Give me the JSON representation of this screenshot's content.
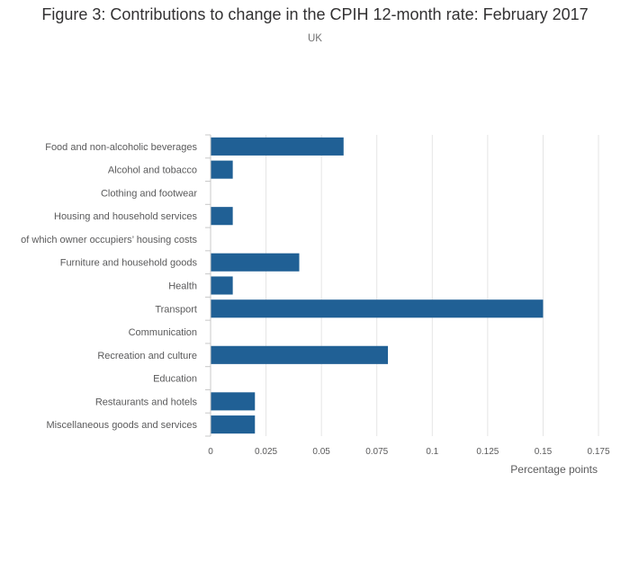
{
  "header": {
    "title": "Figure 3: Contributions to change in the CPIH 12-month rate: February 2017",
    "subtitle": "UK"
  },
  "colors": {
    "bar": "#206095",
    "grid": "#e5e5e5",
    "axis": "#c8c8c8"
  },
  "chart_data": {
    "type": "bar",
    "orientation": "horizontal",
    "title": "Figure 3: Contributions to change in the CPIH 12-month rate: February 2017",
    "subtitle": "UK",
    "xlabel": "Percentage points",
    "ylabel": "",
    "xlim": [
      0,
      0.175
    ],
    "xticks": [
      0,
      0.025,
      0.05,
      0.075,
      0.1,
      0.125,
      0.15,
      0.175
    ],
    "xtick_labels": [
      "0",
      "0.025",
      "0.05",
      "0.075",
      "0.1",
      "0.125",
      "0.15",
      "0.175"
    ],
    "grid": true,
    "categories": [
      "Food and non-alcoholic beverages",
      "Alcohol and tobacco",
      "Clothing and footwear",
      "Housing and household services",
      "of which owner occupiers’ housing costs",
      "Furniture and household goods",
      "Health",
      "Transport",
      "Communication",
      "Recreation and culture",
      "Education",
      "Restaurants and hotels",
      "Miscellaneous goods and services"
    ],
    "values": [
      0.06,
      0.01,
      0,
      0.01,
      0,
      0.04,
      0.01,
      0.15,
      0,
      0.08,
      0,
      0.02,
      0.02
    ]
  }
}
